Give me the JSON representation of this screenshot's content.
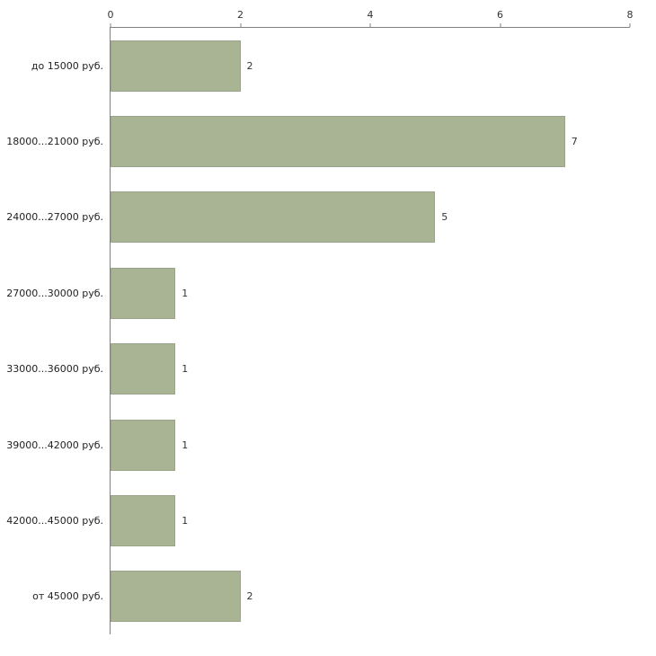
{
  "chart_data": {
    "type": "bar",
    "orientation": "horizontal",
    "title": "",
    "xlabel": "",
    "ylabel": "",
    "categories": [
      "до 15000 руб.",
      "18000...21000 руб.",
      "24000...27000 руб.",
      "27000...30000 руб.",
      "33000...36000 руб.",
      "39000...42000 руб.",
      "42000...45000 руб.",
      "от 45000 руб."
    ],
    "values": [
      2,
      7,
      5,
      1,
      1,
      1,
      1,
      2
    ],
    "x_ticks": [
      0,
      2,
      4,
      6,
      8
    ],
    "xlim": [
      0,
      8
    ],
    "grid": false,
    "legend": false,
    "bar_color": "#a9b494",
    "bar_border_color": "#9aa488",
    "axis_color": "#808080",
    "label_color": "#333333",
    "background_color": "#ffffff"
  }
}
